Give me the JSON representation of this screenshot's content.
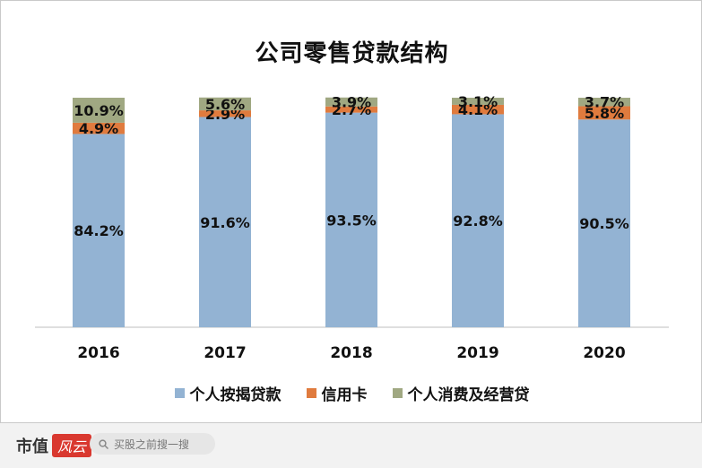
{
  "chart_data": {
    "type": "bar",
    "stacked": true,
    "title": "公司零售贷款结构",
    "categories": [
      "2016",
      "2017",
      "2018",
      "2019",
      "2020"
    ],
    "series": [
      {
        "name": "个人按揭贷款",
        "values": [
          84.2,
          91.6,
          93.5,
          92.8,
          90.5
        ],
        "labels": [
          "84.2%",
          "91.6%",
          "93.5%",
          "92.8%",
          "90.5%"
        ],
        "color": "#93b3d3"
      },
      {
        "name": "信用卡",
        "values": [
          4.9,
          2.9,
          2.7,
          4.1,
          5.8
        ],
        "labels": [
          "4.9%",
          "2.9%",
          "2.7%",
          "4.1%",
          "5.8%"
        ],
        "color": "#e07b3e"
      },
      {
        "name": "个人消费及经营贷",
        "values": [
          10.9,
          5.6,
          3.9,
          3.1,
          3.7
        ],
        "labels": [
          "10.9%",
          "5.6%",
          "3.9%",
          "3.1%",
          "3.7%"
        ],
        "color": "#a0a882"
      }
    ],
    "ylim": [
      0,
      100
    ],
    "grid": false,
    "legend_position": "bottom"
  },
  "footer": {
    "brand": "市值",
    "brand_logo": "风云",
    "search_placeholder": "买股之前搜一搜"
  }
}
